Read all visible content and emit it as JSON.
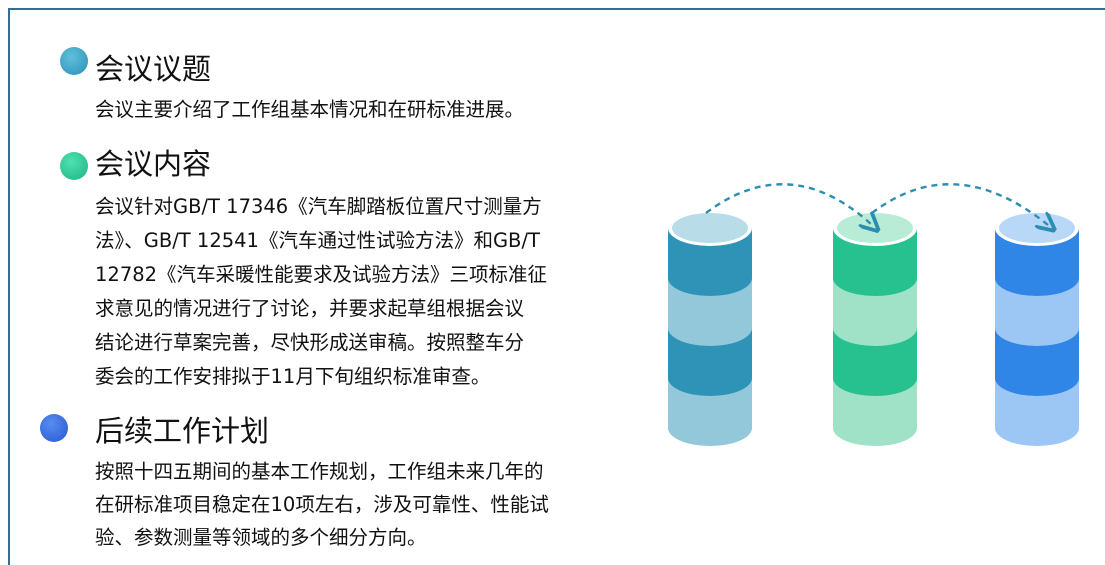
{
  "sections": [
    {
      "title": "会议议题",
      "lines": [
        "会议主要介绍了工作组基本情况和在研标准进展。"
      ]
    },
    {
      "title": "会议内容",
      "lines": [
        "会议针对GB/T 17346《汽车脚踏板位置尺寸测量方",
        "法》、GB/T 12541《汽车通过性试验方法》和GB/T",
        "12782《汽车采暖性能要求及试验方法》三项标准征",
        "求意见的情况进行了讨论，并要求起草组根据会议",
        "结论进行草案完善，尽快形成送审稿。按照整车分",
        "委会的工作安排拟于11月下旬组织标准审查。"
      ]
    },
    {
      "title": "后续工作计划",
      "lines": [
        "按照十四五期间的基本工作规划，工作组未来几年的",
        "在研标准项目稳定在10项左右，涉及可靠性、性能试",
        "验、参数测量等领域的多个细分方向。"
      ]
    }
  ]
}
